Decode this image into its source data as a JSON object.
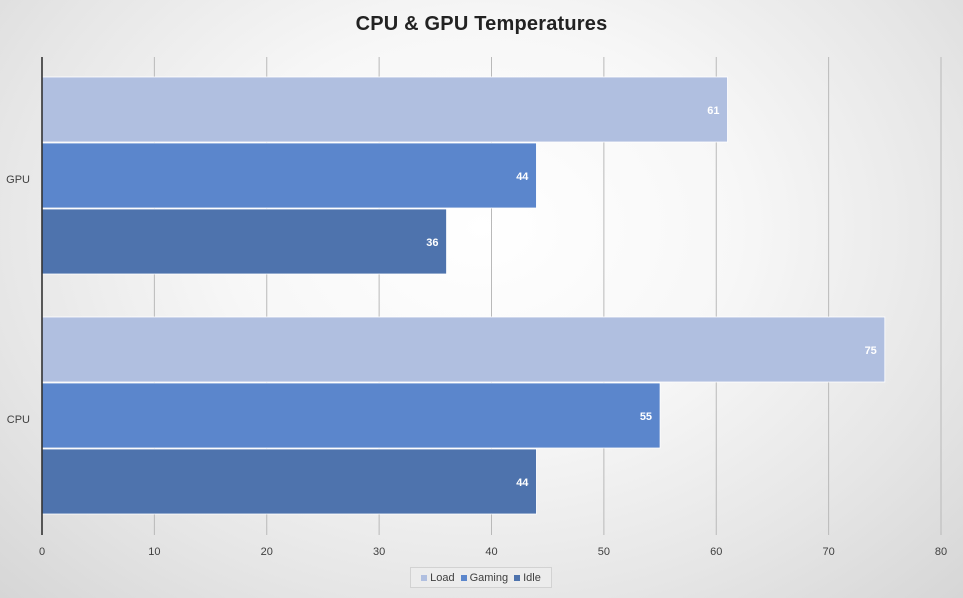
{
  "chart_data": {
    "type": "bar",
    "orientation": "horizontal",
    "title": "CPU & GPU Temperatures",
    "categories": [
      "GPU",
      "CPU"
    ],
    "series": [
      {
        "name": "Load",
        "values": [
          61,
          75
        ],
        "color": "#B0BFE0"
      },
      {
        "name": "Gaming",
        "values": [
          44,
          55
        ],
        "color": "#5B86CC"
      },
      {
        "name": "Idle",
        "values": [
          36,
          44
        ],
        "color": "#4E73AD"
      }
    ],
    "xlim": [
      0,
      80
    ],
    "x_ticks": [
      "0",
      "10",
      "20",
      "30",
      "40",
      "50",
      "60",
      "70",
      "80"
    ],
    "grid": true,
    "data_labels": true,
    "legend_position": "bottom"
  }
}
